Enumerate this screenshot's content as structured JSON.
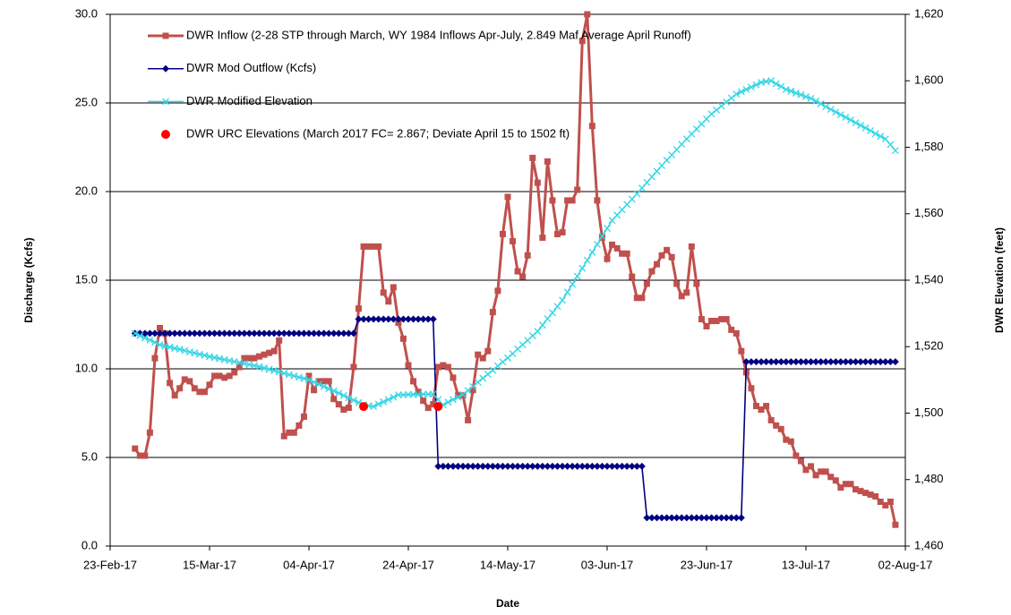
{
  "chart_data": {
    "type": "line",
    "x_label": "Date",
    "y_label": "Discharge (Kcfs)",
    "y2_label": "DWR Elevation (feet)",
    "legend": "upper left",
    "grid": true,
    "xlim": [
      "2017-02-23",
      "2017-08-02"
    ],
    "xticks": [
      {
        "value": "2017-02-23",
        "label": "23-Feb-17"
      },
      {
        "value": "2017-03-15",
        "label": "15-Mar-17"
      },
      {
        "value": "2017-04-04",
        "label": "04-Apr-17"
      },
      {
        "value": "2017-04-24",
        "label": "24-Apr-17"
      },
      {
        "value": "2017-05-14",
        "label": "14-May-17"
      },
      {
        "value": "2017-06-03",
        "label": "03-Jun-17"
      },
      {
        "value": "2017-06-23",
        "label": "23-Jun-17"
      },
      {
        "value": "2017-07-13",
        "label": "13-Jul-17"
      },
      {
        "value": "2017-08-02",
        "label": "02-Aug-17"
      }
    ],
    "ylim": [
      0,
      30
    ],
    "yticks": [
      {
        "value": 0,
        "label": "0.0"
      },
      {
        "value": 5,
        "label": "5.0"
      },
      {
        "value": 10,
        "label": "10.0"
      },
      {
        "value": 15,
        "label": "15.0"
      },
      {
        "value": 20,
        "label": "20.0"
      },
      {
        "value": 25,
        "label": "25.0"
      },
      {
        "value": 30,
        "label": "30.0"
      }
    ],
    "y2lim": [
      1460,
      1620
    ],
    "y2ticks": [
      {
        "value": 1460,
        "label": "1,460"
      },
      {
        "value": 1480,
        "label": "1,480"
      },
      {
        "value": 1500,
        "label": "1,500"
      },
      {
        "value": 1520,
        "label": "1,520"
      },
      {
        "value": 1540,
        "label": "1,540"
      },
      {
        "value": 1560,
        "label": "1,560"
      },
      {
        "value": 1580,
        "label": "1,580"
      },
      {
        "value": 1600,
        "label": "1,600"
      },
      {
        "value": 1620,
        "label": "1,620"
      }
    ],
    "x": [
      "2017-02-28",
      "2017-03-01",
      "2017-03-02",
      "2017-03-03",
      "2017-03-04",
      "2017-03-05",
      "2017-03-06",
      "2017-03-07",
      "2017-03-08",
      "2017-03-09",
      "2017-03-10",
      "2017-03-11",
      "2017-03-12",
      "2017-03-13",
      "2017-03-14",
      "2017-03-15",
      "2017-03-16",
      "2017-03-17",
      "2017-03-18",
      "2017-03-19",
      "2017-03-20",
      "2017-03-21",
      "2017-03-22",
      "2017-03-23",
      "2017-03-24",
      "2017-03-25",
      "2017-03-26",
      "2017-03-27",
      "2017-03-28",
      "2017-03-29",
      "2017-03-30",
      "2017-03-31",
      "2017-04-01",
      "2017-04-02",
      "2017-04-03",
      "2017-04-04",
      "2017-04-05",
      "2017-04-06",
      "2017-04-07",
      "2017-04-08",
      "2017-04-09",
      "2017-04-10",
      "2017-04-11",
      "2017-04-12",
      "2017-04-13",
      "2017-04-14",
      "2017-04-15",
      "2017-04-16",
      "2017-04-17",
      "2017-04-18",
      "2017-04-19",
      "2017-04-20",
      "2017-04-21",
      "2017-04-22",
      "2017-04-23",
      "2017-04-24",
      "2017-04-25",
      "2017-04-26",
      "2017-04-27",
      "2017-04-28",
      "2017-04-29",
      "2017-04-30",
      "2017-05-01",
      "2017-05-02",
      "2017-05-03",
      "2017-05-04",
      "2017-05-05",
      "2017-05-06",
      "2017-05-07",
      "2017-05-08",
      "2017-05-09",
      "2017-05-10",
      "2017-05-11",
      "2017-05-12",
      "2017-05-13",
      "2017-05-14",
      "2017-05-15",
      "2017-05-16",
      "2017-05-17",
      "2017-05-18",
      "2017-05-19",
      "2017-05-20",
      "2017-05-21",
      "2017-05-22",
      "2017-05-23",
      "2017-05-24",
      "2017-05-25",
      "2017-05-26",
      "2017-05-27",
      "2017-05-28",
      "2017-05-29",
      "2017-05-30",
      "2017-05-31",
      "2017-06-01",
      "2017-06-02",
      "2017-06-03",
      "2017-06-04",
      "2017-06-05",
      "2017-06-06",
      "2017-06-07",
      "2017-06-08",
      "2017-06-09",
      "2017-06-10",
      "2017-06-11",
      "2017-06-12",
      "2017-06-13",
      "2017-06-14",
      "2017-06-15",
      "2017-06-16",
      "2017-06-17",
      "2017-06-18",
      "2017-06-19",
      "2017-06-20",
      "2017-06-21",
      "2017-06-22",
      "2017-06-23",
      "2017-06-24",
      "2017-06-25",
      "2017-06-26",
      "2017-06-27",
      "2017-06-28",
      "2017-06-29",
      "2017-06-30",
      "2017-07-01",
      "2017-07-02",
      "2017-07-03",
      "2017-07-04",
      "2017-07-05",
      "2017-07-06",
      "2017-07-07",
      "2017-07-08",
      "2017-07-09",
      "2017-07-10",
      "2017-07-11",
      "2017-07-12",
      "2017-07-13",
      "2017-07-14",
      "2017-07-15",
      "2017-07-16",
      "2017-07-17",
      "2017-07-18",
      "2017-07-19",
      "2017-07-20",
      "2017-07-21",
      "2017-07-22",
      "2017-07-23",
      "2017-07-24",
      "2017-07-25",
      "2017-07-26",
      "2017-07-27",
      "2017-07-28",
      "2017-07-29",
      "2017-07-30",
      "2017-07-31"
    ],
    "series": [
      {
        "name": "DWR Inflow (2-28 STP through March, WY 1984 Inflows Apr-July, 2.849 Maf Average April Runoff)",
        "color": "#c0504d",
        "marker": "square",
        "line": true,
        "values": [
          5.5,
          5.1,
          5.1,
          6.4,
          10.6,
          12.3,
          12.0,
          9.2,
          8.5,
          8.9,
          9.4,
          9.3,
          8.9,
          8.7,
          8.7,
          9.1,
          9.6,
          9.6,
          9.5,
          9.6,
          9.8,
          10.1,
          10.6,
          10.6,
          10.6,
          10.7,
          10.8,
          10.9,
          11.0,
          11.6,
          6.2,
          6.4,
          6.4,
          6.8,
          7.3,
          9.6,
          8.8,
          9.3,
          9.3,
          9.3,
          8.3,
          8.0,
          7.7,
          7.8,
          10.1,
          13.4,
          16.9,
          16.9,
          16.9,
          16.9,
          14.3,
          13.8,
          14.6,
          12.6,
          11.7,
          10.2,
          9.3,
          8.7,
          8.2,
          7.8,
          8.0,
          10.1,
          10.2,
          10.1,
          9.5,
          8.5,
          8.5,
          7.1,
          8.8,
          10.8,
          10.6,
          11.0,
          13.2,
          14.4,
          17.6,
          19.7,
          17.2,
          15.5,
          15.2,
          16.4,
          21.9,
          20.5,
          17.4,
          21.7,
          19.5,
          17.6,
          17.7,
          19.5,
          19.5,
          20.1,
          28.5,
          30.0,
          23.7,
          19.5,
          17.4,
          16.2,
          17.0,
          16.8,
          16.5,
          16.5,
          15.2,
          14.0,
          14.0,
          14.8,
          15.5,
          15.9,
          16.4,
          16.7,
          16.3,
          14.8,
          14.1,
          14.3,
          16.9,
          14.8,
          12.8,
          12.4,
          12.7,
          12.7,
          12.8,
          12.8,
          12.2,
          12.0,
          11.0,
          9.8,
          8.9,
          7.9,
          7.7,
          7.9,
          7.1,
          6.8,
          6.6,
          6.0,
          5.9,
          5.1,
          4.8,
          4.3,
          4.5,
          4.0,
          4.2,
          4.2,
          3.9,
          3.7,
          3.3,
          3.5,
          3.5,
          3.2,
          3.1,
          3.0,
          2.9,
          2.8,
          2.5,
          2.3,
          2.5,
          1.2
        ]
      },
      {
        "name": "DWR Mod Outflow (Kcfs)",
        "color": "#000080",
        "marker": "diamond",
        "line": true,
        "values": [
          12,
          12,
          12,
          12,
          12,
          12,
          12,
          12,
          12,
          12,
          12,
          12,
          12,
          12,
          12,
          12,
          12,
          12,
          12,
          12,
          12,
          12,
          12,
          12,
          12,
          12,
          12,
          12,
          12,
          12,
          12,
          12,
          12,
          12,
          12,
          12,
          12,
          12,
          12,
          12,
          12,
          12,
          12,
          12,
          12,
          12.8,
          12.8,
          12.8,
          12.8,
          12.8,
          12.8,
          12.8,
          12.8,
          12.8,
          12.8,
          12.8,
          12.8,
          12.8,
          12.8,
          12.8,
          12.8,
          4.5,
          4.5,
          4.5,
          4.5,
          4.5,
          4.5,
          4.5,
          4.5,
          4.5,
          4.5,
          4.5,
          4.5,
          4.5,
          4.5,
          4.5,
          4.5,
          4.5,
          4.5,
          4.5,
          4.5,
          4.5,
          4.5,
          4.5,
          4.5,
          4.5,
          4.5,
          4.5,
          4.5,
          4.5,
          4.5,
          4.5,
          4.5,
          4.5,
          4.5,
          4.5,
          4.5,
          4.5,
          4.5,
          4.5,
          4.5,
          4.5,
          4.5,
          1.6,
          1.6,
          1.6,
          1.6,
          1.6,
          1.6,
          1.6,
          1.6,
          1.6,
          1.6,
          1.6,
          1.6,
          1.6,
          1.6,
          1.6,
          1.6,
          1.6,
          1.6,
          1.6,
          1.6,
          10.4,
          10.4,
          10.4,
          10.4,
          10.4,
          10.4,
          10.4,
          10.4,
          10.4,
          10.4,
          10.4,
          10.4,
          10.4,
          10.4,
          10.4,
          10.4,
          10.4,
          10.4,
          10.4,
          10.4,
          10.4,
          10.4,
          10.4,
          10.4,
          10.4,
          10.4,
          10.4,
          10.4,
          10.4,
          10.4,
          10.4
        ]
      },
      {
        "name": "DWR Modified Elevation",
        "color": "#33d6e6",
        "marker": "x",
        "line": true,
        "axis": "y2",
        "values": [
          1524,
          1523.3,
          1522.6,
          1522.0,
          1521.3,
          1520.6,
          1520.2,
          1519.9,
          1519.5,
          1519.2,
          1518.8,
          1518.4,
          1518.1,
          1517.7,
          1517.4,
          1517.0,
          1516.7,
          1516.4,
          1516.1,
          1515.8,
          1515.5,
          1515.2,
          1514.9,
          1514.6,
          1514.3,
          1514.0,
          1513.6,
          1513.2,
          1512.8,
          1512.4,
          1512.0,
          1511.6,
          1511.2,
          1510.8,
          1510.4,
          1510.0,
          1509.3,
          1508.7,
          1508.0,
          1507.3,
          1506.7,
          1506.0,
          1505.3,
          1504.6,
          1503.9,
          1503.2,
          1502.5,
          1502.2,
          1502.0,
          1502.7,
          1503.4,
          1504.1,
          1504.8,
          1505.5,
          1505.5,
          1505.6,
          1505.6,
          1505.6,
          1505.7,
          1505.7,
          1505.7,
          1504.1,
          1502.5,
          1503.3,
          1504.1,
          1504.8,
          1505.6,
          1506.8,
          1508.0,
          1509.3,
          1510.5,
          1511.7,
          1512.9,
          1514.2,
          1515.4,
          1516.6,
          1517.9,
          1519.3,
          1520.6,
          1521.9,
          1523.3,
          1524.6,
          1526.5,
          1528.4,
          1530.2,
          1532.1,
          1534.0,
          1536.4,
          1538.8,
          1541.2,
          1543.6,
          1546.0,
          1548.4,
          1550.8,
          1553.2,
          1555.6,
          1558.0,
          1559.6,
          1561.2,
          1562.8,
          1564.4,
          1566.0,
          1567.7,
          1569.4,
          1571.1,
          1572.8,
          1574.5,
          1576.1,
          1577.7,
          1579.3,
          1580.9,
          1582.5,
          1584.0,
          1585.5,
          1587.0,
          1588.5,
          1590.0,
          1591.2,
          1592.4,
          1593.6,
          1594.8,
          1596.0,
          1596.7,
          1597.4,
          1598.1,
          1598.8,
          1599.5,
          1599.8,
          1600.0,
          1599.1,
          1598.3,
          1597.4,
          1596.9,
          1596.3,
          1595.8,
          1595.2,
          1594.7,
          1593.9,
          1593.1,
          1592.2,
          1591.4,
          1590.6,
          1589.8,
          1589.0,
          1588.2,
          1587.4,
          1586.6,
          1585.8,
          1585.0,
          1584.1,
          1583.3,
          1582.5,
          1580.8,
          1579.0
        ]
      },
      {
        "name": "DWR URC Elevations (March 2017 FC= 2.867; Deviate April 15 to 1502 ft)",
        "color": "#ff0000",
        "marker": "circle",
        "line": false,
        "axis": "y2",
        "x": [
          "2017-04-15",
          "2017-04-30"
        ],
        "values": [
          1502,
          1502
        ]
      }
    ]
  }
}
